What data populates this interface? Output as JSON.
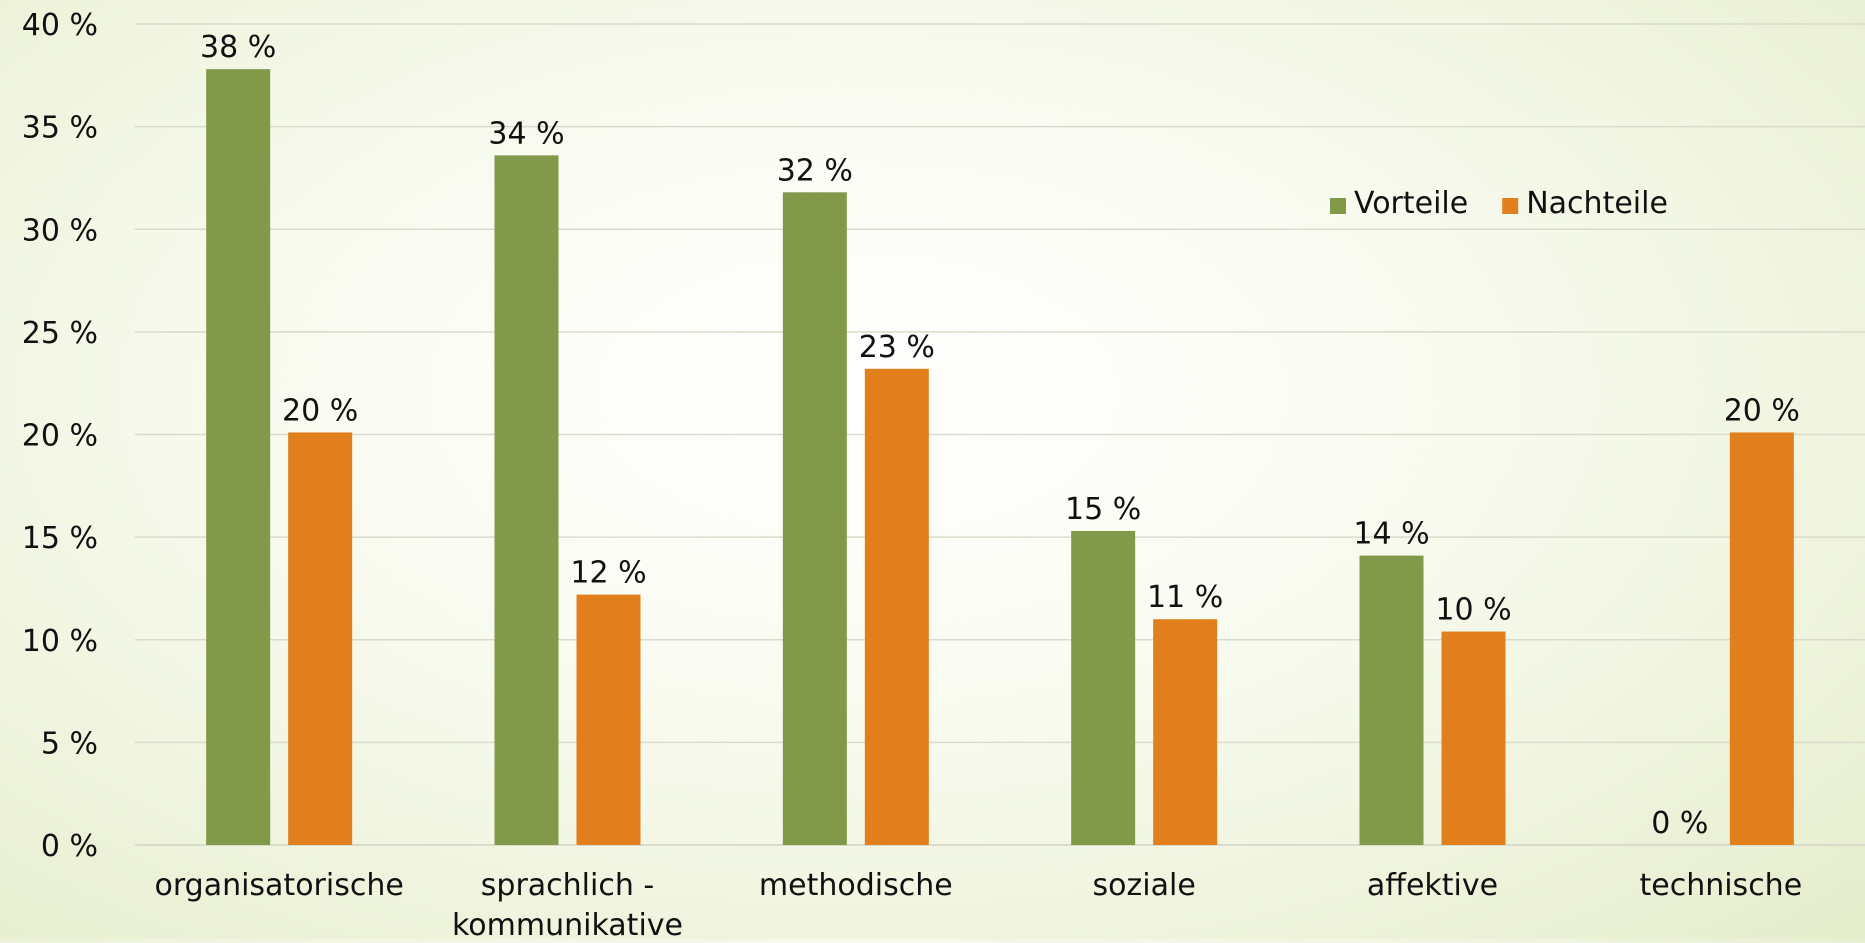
{
  "chart_data": {
    "type": "bar",
    "title": "",
    "xlabel": "",
    "ylabel": "",
    "ylim": [
      0,
      40
    ],
    "ytick_step": 5,
    "ytick_labels": [
      "0 %",
      "5 %",
      "10 %",
      "15 %",
      "20 %",
      "25 %",
      "30 %",
      "35 %",
      "40 %"
    ],
    "categories": [
      [
        "organisatorische"
      ],
      [
        "sprachlich -",
        "kommunikative"
      ],
      [
        "methodische"
      ],
      [
        "soziale"
      ],
      [
        "affektive"
      ],
      [
        "technische"
      ]
    ],
    "series": [
      {
        "name": "Vorteile",
        "color": "#82994a",
        "values": [
          37.8,
          33.6,
          31.8,
          15.3,
          14.1,
          0
        ],
        "labels": [
          "38 %",
          "34 %",
          "32 %",
          "15 %",
          "14 %",
          "0 %"
        ]
      },
      {
        "name": "Nachteile",
        "color": "#e07f1c",
        "values": [
          20.1,
          12.2,
          23.2,
          11.0,
          10.4,
          20.1
        ],
        "labels": [
          "20 %",
          "12 %",
          "23 %",
          "11 %",
          "10 %",
          "20 %"
        ]
      }
    ],
    "grid": true,
    "gridline_color": "#d9dccc",
    "legend_position": "top-right"
  }
}
